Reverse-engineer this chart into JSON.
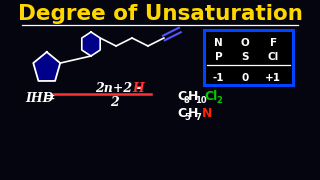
{
  "title": "Degree of Unsaturation",
  "title_color": "#FFD700",
  "bg_color": "#050510",
  "formula_color": "#FFFFFF",
  "formula_h_color": "#FF3333",
  "fraction_bar_color": "#FF3333",
  "table_header_row1": [
    "N",
    "O",
    "F"
  ],
  "table_header_row2": [
    "P",
    "S",
    "Cl"
  ],
  "table_values": [
    "-1",
    "0",
    "+1"
  ],
  "table_border_color": "#0044FF",
  "white": "#FFFFFF",
  "blue_fill": "#00008B",
  "blue_stroke": "#3333CC",
  "green": "#00CC00",
  "red": "#FF2200",
  "mol1_base": "C",
  "mol1_sub1": "8",
  "mol1_h": "H",
  "mol1_sub2": "10",
  "mol1_cl": "Cl",
  "mol1_sub3": "2",
  "mol2_base": "C",
  "mol2_sub1": "5",
  "mol2_h": "H",
  "mol2_sub2": "7",
  "mol2_n": "N"
}
